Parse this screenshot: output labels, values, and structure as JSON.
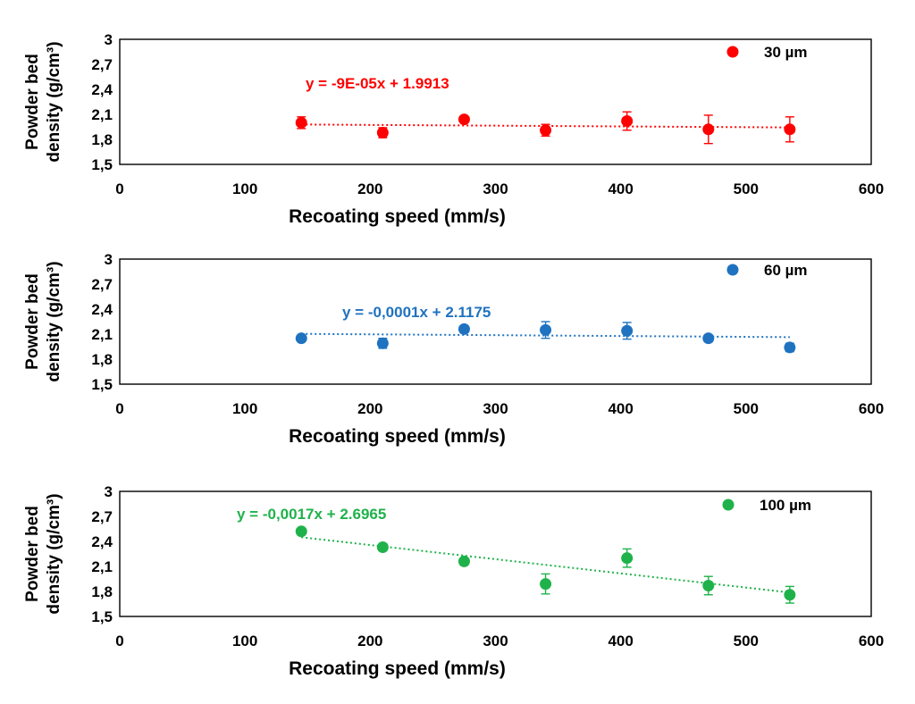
{
  "chart_data": [
    {
      "type": "scatter",
      "xlabel": "Recoating speed (mm/s)",
      "ylabel": [
        "Powder bed",
        "density (g/cm³)"
      ],
      "xlim": [
        0,
        600
      ],
      "ylim": [
        1.5,
        3
      ],
      "x_ticks": [
        "0",
        "100",
        "200",
        "300",
        "400",
        "500",
        "600"
      ],
      "y_ticks": [
        "1,5",
        "1,8",
        "2,1",
        "2,4",
        "2,7",
        "3"
      ],
      "grid": false,
      "legend_position": "top-right",
      "series": [
        {
          "name": "30 µm",
          "color": "#ff0000",
          "x": [
            145,
            210,
            275,
            340,
            405,
            470,
            535
          ],
          "y": [
            2.0,
            1.88,
            2.04,
            1.91,
            2.02,
            1.92,
            1.92
          ],
          "error": [
            0.07,
            0.06,
            0.03,
            0.07,
            0.11,
            0.17,
            0.15
          ],
          "trendline": {
            "slope": -9e-05,
            "intercept": 1.9913,
            "equation": "y = -9E-05x + 1.9913"
          }
        }
      ]
    },
    {
      "type": "scatter",
      "xlabel": "Recoating speed (mm/s)",
      "ylabel": [
        "Powder bed",
        "density (g/cm³)"
      ],
      "xlim": [
        0,
        600
      ],
      "ylim": [
        1.5,
        3
      ],
      "x_ticks": [
        "0",
        "100",
        "200",
        "300",
        "400",
        "500",
        "600"
      ],
      "y_ticks": [
        "1,5",
        "1,8",
        "2,1",
        "2,4",
        "2,7",
        "3"
      ],
      "grid": false,
      "legend_position": "top-right",
      "series": [
        {
          "name": "60 µm",
          "color": "#1f72c0",
          "x": [
            145,
            210,
            275,
            340,
            405,
            470,
            535
          ],
          "y": [
            2.05,
            1.99,
            2.16,
            2.15,
            2.14,
            2.05,
            1.94
          ],
          "error": [
            0.03,
            0.06,
            0.04,
            0.1,
            0.1,
            0.04,
            0.05
          ],
          "trendline": {
            "slope": -0.0001,
            "intercept": 2.1175,
            "equation": "y = -0,0001x + 2.1175"
          }
        }
      ]
    },
    {
      "type": "scatter",
      "xlabel": "Recoating speed (mm/s)",
      "ylabel": [
        "Powder bed",
        "density (g/cm³)"
      ],
      "xlim": [
        0,
        600
      ],
      "ylim": [
        1.5,
        3
      ],
      "x_ticks": [
        "0",
        "100",
        "200",
        "300",
        "400",
        "500",
        "600"
      ],
      "y_ticks": [
        "1,5",
        "1,8",
        "2,1",
        "2,4",
        "2,7",
        "3"
      ],
      "grid": false,
      "legend_position": "top-right",
      "series": [
        {
          "name": "100 µm",
          "color": "#1fb24a",
          "x": [
            145,
            210,
            275,
            340,
            405,
            470,
            535
          ],
          "y": [
            2.52,
            2.33,
            2.16,
            1.89,
            2.2,
            1.87,
            1.76
          ],
          "error": [
            0.02,
            0.04,
            0.04,
            0.12,
            0.11,
            0.11,
            0.1
          ],
          "trendline": {
            "slope": -0.0017,
            "intercept": 2.6965,
            "equation": "y = -0,0017x + 2.6965"
          }
        }
      ]
    }
  ]
}
